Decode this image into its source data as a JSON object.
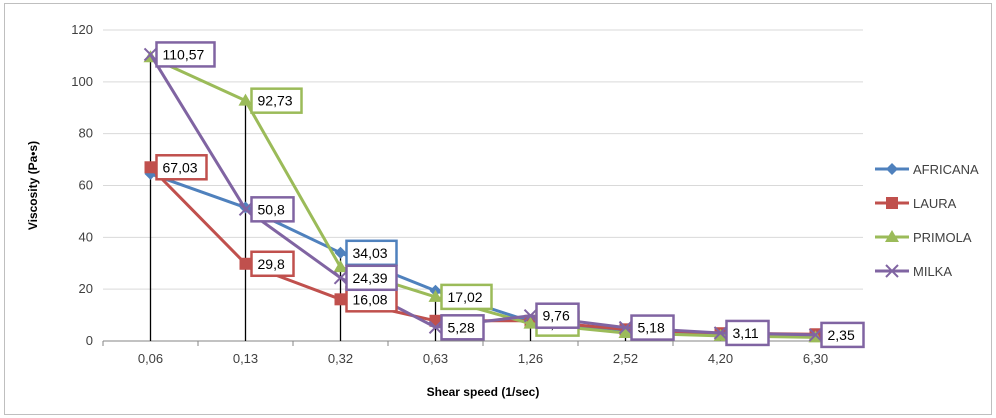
{
  "chart_data": {
    "type": "line",
    "title": "",
    "xlabel": "Shear speed (1/sec)",
    "ylabel": "Viscosity  (Pa•s)",
    "categories": [
      "0,06",
      "0,13",
      "0,32",
      "0,63",
      "1,26",
      "2,52",
      "4,20",
      "6,30"
    ],
    "ylim": [
      0,
      120
    ],
    "yticks": [
      "0",
      "20",
      "40",
      "60",
      "80",
      "100",
      "120"
    ],
    "grid": true,
    "legend_position": "right",
    "series": [
      {
        "name": "AFRICANA",
        "color": "#4f81bd",
        "marker": "diamond",
        "values": [
          64.5,
          51.5,
          34.03,
          19.4,
          7.5,
          4.2,
          2.8,
          2.2
        ],
        "labels": [
          "",
          "",
          "34,03",
          "",
          "",
          "",
          "",
          ""
        ]
      },
      {
        "name": "LAURA",
        "color": "#c0504d",
        "marker": "square",
        "values": [
          67.03,
          29.8,
          16.08,
          7.8,
          7.8,
          4.5,
          3.0,
          2.6
        ],
        "labels": [
          "67,03",
          "29,8",
          "16,08",
          "",
          "",
          "",
          "",
          ""
        ]
      },
      {
        "name": "PRIMOLA",
        "color": "#9bbb59",
        "marker": "triangle",
        "values": [
          109.5,
          92.73,
          28.5,
          17.02,
          6.7,
          3.1,
          2.0,
          1.4
        ],
        "labels": [
          "",
          "92,73",
          "",
          "17,02",
          "6,71",
          "",
          "",
          ""
        ]
      },
      {
        "name": "MILKA",
        "color": "#8064a2",
        "marker": "x",
        "values": [
          110.57,
          50.8,
          24.39,
          5.28,
          9.76,
          5.18,
          3.11,
          2.35
        ],
        "labels": [
          "110,57",
          "50,8",
          "24,39",
          "5,28",
          "9,76",
          "5,18",
          "3,11",
          "2,35"
        ]
      }
    ]
  }
}
